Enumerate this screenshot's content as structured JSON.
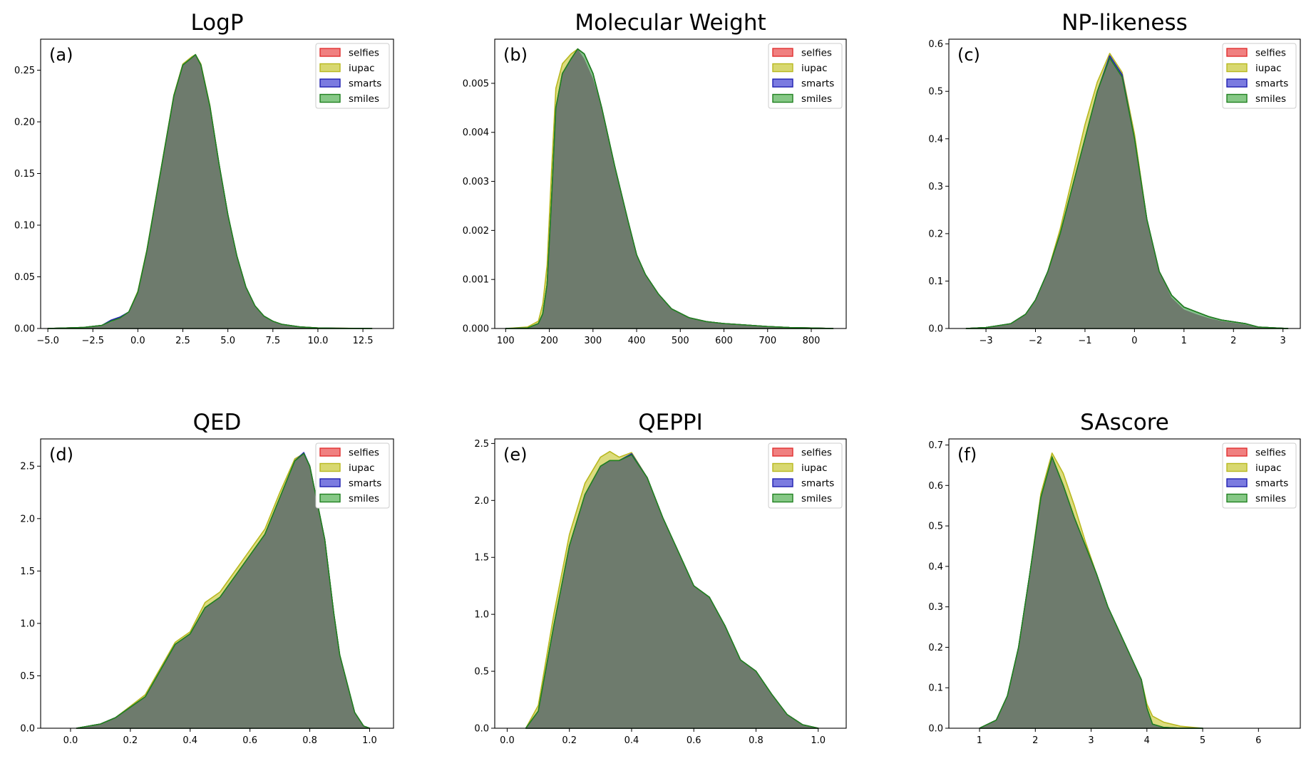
{
  "series_colors": {
    "selfies": {
      "fill": "#f08080",
      "stroke": "#e03030"
    },
    "iupac": {
      "fill": "#d8d870",
      "stroke": "#b8b820"
    },
    "smarts": {
      "fill": "#7b7be0",
      "stroke": "#2020b0"
    },
    "smiles": {
      "fill": "#86c886",
      "stroke": "#208020"
    },
    "overlap_fill": "#6e7b6d"
  },
  "chart_data": [
    {
      "type": "area",
      "title": "LogP",
      "panel_label": "(a)",
      "legend": [
        "selfies",
        "iupac",
        "smarts",
        "smiles"
      ],
      "legend_position": "top-right",
      "xlim": [
        -5.4,
        14.2
      ],
      "ylim": [
        0,
        0.28
      ],
      "xticks": [
        -5.0,
        -2.5,
        0.0,
        2.5,
        5.0,
        7.5,
        10.0,
        12.5
      ],
      "xtick_labels": [
        "−5.0",
        "−2.5",
        "0.0",
        "2.5",
        "5.0",
        "7.5",
        "10.0",
        "12.5"
      ],
      "yticks": [
        0.0,
        0.05,
        0.1,
        0.15,
        0.2,
        0.25
      ],
      "ytick_labels": [
        "0.00",
        "0.05",
        "0.10",
        "0.15",
        "0.20",
        "0.25"
      ],
      "x": [
        -5,
        -3,
        -2,
        -1.5,
        -1,
        -0.5,
        0,
        0.5,
        1,
        1.5,
        2,
        2.5,
        3,
        3.2,
        3.5,
        4,
        4.5,
        5,
        5.5,
        6,
        6.5,
        7,
        7.5,
        8,
        9,
        10,
        11,
        13
      ],
      "series": [
        {
          "name": "selfies",
          "values": [
            0,
            0.001,
            0.003,
            0.007,
            0.01,
            0.016,
            0.035,
            0.075,
            0.125,
            0.175,
            0.225,
            0.255,
            0.262,
            0.265,
            0.255,
            0.215,
            0.16,
            0.11,
            0.07,
            0.04,
            0.022,
            0.012,
            0.007,
            0.004,
            0.0015,
            0.0005,
            0.0002,
            0
          ]
        },
        {
          "name": "iupac",
          "values": [
            0,
            0.001,
            0.003,
            0.006,
            0.01,
            0.016,
            0.036,
            0.076,
            0.126,
            0.176,
            0.226,
            0.256,
            0.263,
            0.265,
            0.256,
            0.216,
            0.16,
            0.11,
            0.07,
            0.04,
            0.022,
            0.012,
            0.007,
            0.004,
            0.0015,
            0.0006,
            0.0003,
            0
          ]
        },
        {
          "name": "smarts",
          "values": [
            0,
            0.001,
            0.003,
            0.008,
            0.011,
            0.016,
            0.035,
            0.075,
            0.125,
            0.175,
            0.225,
            0.255,
            0.262,
            0.265,
            0.255,
            0.215,
            0.16,
            0.11,
            0.07,
            0.04,
            0.022,
            0.012,
            0.007,
            0.004,
            0.0015,
            0.0005,
            0.0002,
            0
          ]
        },
        {
          "name": "smiles",
          "values": [
            0,
            0.001,
            0.003,
            0.007,
            0.01,
            0.016,
            0.035,
            0.075,
            0.125,
            0.175,
            0.225,
            0.255,
            0.262,
            0.265,
            0.255,
            0.215,
            0.16,
            0.11,
            0.07,
            0.04,
            0.022,
            0.012,
            0.007,
            0.004,
            0.0015,
            0.0005,
            0.0002,
            0
          ]
        }
      ]
    },
    {
      "type": "area",
      "title": "Molecular Weight",
      "panel_label": "(b)",
      "legend": [
        "selfies",
        "iupac",
        "smarts",
        "smiles"
      ],
      "legend_position": "top-right",
      "xlim": [
        75,
        880
      ],
      "ylim": [
        0,
        0.0059
      ],
      "xticks": [
        100,
        200,
        300,
        400,
        500,
        600,
        700,
        800
      ],
      "xtick_labels": [
        "100",
        "200",
        "300",
        "400",
        "500",
        "600",
        "700",
        "800"
      ],
      "yticks": [
        0.0,
        0.001,
        0.002,
        0.003,
        0.004,
        0.005
      ],
      "ytick_labels": [
        "0.000",
        "0.001",
        "0.002",
        "0.003",
        "0.004",
        "0.005"
      ],
      "x": [
        100,
        150,
        175,
        185,
        195,
        205,
        215,
        230,
        250,
        265,
        280,
        300,
        320,
        350,
        380,
        400,
        420,
        450,
        480,
        520,
        560,
        600,
        650,
        700,
        750,
        800,
        850
      ],
      "series": [
        {
          "name": "selfies",
          "values": [
            0,
            1e-05,
            0.0001,
            0.0003,
            0.0009,
            0.0026,
            0.0045,
            0.0052,
            0.0055,
            0.0057,
            0.0056,
            0.0052,
            0.0045,
            0.0033,
            0.0022,
            0.0015,
            0.0011,
            0.0007,
            0.0004,
            0.00022,
            0.00014,
            0.0001,
            7e-05,
            4e-05,
            2e-05,
            1e-05,
            0
          ]
        },
        {
          "name": "iupac",
          "values": [
            0,
            3e-05,
            0.00015,
            0.0005,
            0.0013,
            0.0032,
            0.0049,
            0.0054,
            0.0056,
            0.0057,
            0.0055,
            0.0051,
            0.0045,
            0.0033,
            0.0022,
            0.0015,
            0.0011,
            0.0007,
            0.0004,
            0.00022,
            0.00014,
            0.0001,
            7e-05,
            4e-05,
            2e-05,
            1e-05,
            0
          ]
        },
        {
          "name": "smarts",
          "values": [
            0,
            1e-05,
            0.0001,
            0.0003,
            0.0009,
            0.0026,
            0.0045,
            0.0052,
            0.0055,
            0.0057,
            0.0056,
            0.0052,
            0.0045,
            0.0033,
            0.0022,
            0.0015,
            0.0011,
            0.0007,
            0.0004,
            0.00022,
            0.00014,
            0.0001,
            7e-05,
            4e-05,
            2e-05,
            1e-05,
            0
          ]
        },
        {
          "name": "smiles",
          "values": [
            0,
            1e-05,
            0.0001,
            0.0003,
            0.0009,
            0.0026,
            0.0045,
            0.0052,
            0.0055,
            0.0057,
            0.0056,
            0.0052,
            0.0045,
            0.0033,
            0.0022,
            0.0015,
            0.0011,
            0.0007,
            0.0004,
            0.00022,
            0.00014,
            0.0001,
            7e-05,
            4e-05,
            2e-05,
            1e-05,
            0
          ]
        }
      ]
    },
    {
      "type": "area",
      "title": "NP-likeness",
      "panel_label": "(c)",
      "legend": [
        "selfies",
        "iupac",
        "smarts",
        "smiles"
      ],
      "legend_position": "top-right",
      "xlim": [
        -3.75,
        3.35
      ],
      "ylim": [
        0,
        0.61
      ],
      "xticks": [
        -3,
        -2,
        -1,
        0,
        1,
        2,
        3
      ],
      "xtick_labels": [
        "−3",
        "−2",
        "−1",
        "0",
        "1",
        "2",
        "3"
      ],
      "yticks": [
        0.0,
        0.1,
        0.2,
        0.3,
        0.4,
        0.5,
        0.6
      ],
      "ytick_labels": [
        "0.0",
        "0.1",
        "0.2",
        "0.3",
        "0.4",
        "0.5",
        "0.6"
      ],
      "x": [
        -3.4,
        -3,
        -2.5,
        -2.2,
        -2,
        -1.75,
        -1.5,
        -1.25,
        -1,
        -0.75,
        -0.5,
        -0.25,
        0,
        0.25,
        0.5,
        0.75,
        1,
        1.25,
        1.5,
        1.75,
        2,
        2.25,
        2.5,
        3.1
      ],
      "series": [
        {
          "name": "selfies",
          "values": [
            0,
            0.002,
            0.01,
            0.03,
            0.06,
            0.12,
            0.2,
            0.3,
            0.4,
            0.5,
            0.57,
            0.53,
            0.4,
            0.23,
            0.12,
            0.07,
            0.045,
            0.035,
            0.025,
            0.018,
            0.014,
            0.01,
            0.003,
            0
          ]
        },
        {
          "name": "iupac",
          "values": [
            0,
            0.002,
            0.01,
            0.03,
            0.06,
            0.12,
            0.21,
            0.32,
            0.43,
            0.52,
            0.58,
            0.54,
            0.41,
            0.23,
            0.12,
            0.065,
            0.04,
            0.03,
            0.022,
            0.016,
            0.012,
            0.008,
            0.002,
            0
          ]
        },
        {
          "name": "smarts",
          "values": [
            0,
            0.002,
            0.01,
            0.03,
            0.06,
            0.12,
            0.2,
            0.3,
            0.4,
            0.5,
            0.575,
            0.535,
            0.4,
            0.23,
            0.12,
            0.07,
            0.045,
            0.035,
            0.025,
            0.018,
            0.014,
            0.01,
            0.003,
            0
          ]
        },
        {
          "name": "smiles",
          "values": [
            0,
            0.002,
            0.01,
            0.03,
            0.06,
            0.12,
            0.2,
            0.3,
            0.4,
            0.5,
            0.57,
            0.53,
            0.4,
            0.23,
            0.12,
            0.07,
            0.045,
            0.035,
            0.025,
            0.018,
            0.014,
            0.01,
            0.003,
            0
          ]
        }
      ]
    },
    {
      "type": "area",
      "title": "QED",
      "panel_label": "(d)",
      "legend": [
        "selfies",
        "iupac",
        "smarts",
        "smiles"
      ],
      "legend_position": "top-right",
      "xlim": [
        -0.1,
        1.08
      ],
      "ylim": [
        0,
        2.76
      ],
      "xticks": [
        0.0,
        0.2,
        0.4,
        0.6,
        0.8,
        1.0
      ],
      "xtick_labels": [
        "0.0",
        "0.2",
        "0.4",
        "0.6",
        "0.8",
        "1.0"
      ],
      "yticks": [
        0.0,
        0.5,
        1.0,
        1.5,
        2.0,
        2.5
      ],
      "ytick_labels": [
        "0.0",
        "0.5",
        "1.0",
        "1.5",
        "2.0",
        "2.5"
      ],
      "x": [
        0.02,
        0.1,
        0.15,
        0.2,
        0.25,
        0.3,
        0.35,
        0.4,
        0.45,
        0.5,
        0.55,
        0.6,
        0.65,
        0.7,
        0.75,
        0.78,
        0.8,
        0.85,
        0.88,
        0.9,
        0.95,
        0.98,
        1.0
      ],
      "series": [
        {
          "name": "selfies",
          "values": [
            0,
            0.04,
            0.1,
            0.2,
            0.3,
            0.55,
            0.8,
            0.9,
            1.15,
            1.25,
            1.45,
            1.65,
            1.85,
            2.2,
            2.55,
            2.62,
            2.5,
            1.8,
            1.1,
            0.7,
            0.15,
            0.02,
            0
          ]
        },
        {
          "name": "iupac",
          "values": [
            0,
            0.04,
            0.1,
            0.21,
            0.32,
            0.57,
            0.82,
            0.92,
            1.2,
            1.3,
            1.5,
            1.7,
            1.9,
            2.25,
            2.57,
            2.62,
            2.5,
            1.8,
            1.1,
            0.7,
            0.15,
            0.02,
            0
          ]
        },
        {
          "name": "smarts",
          "values": [
            0,
            0.04,
            0.1,
            0.2,
            0.3,
            0.55,
            0.8,
            0.9,
            1.15,
            1.25,
            1.45,
            1.65,
            1.85,
            2.2,
            2.55,
            2.63,
            2.5,
            1.8,
            1.1,
            0.7,
            0.15,
            0.02,
            0
          ]
        },
        {
          "name": "smiles",
          "values": [
            0,
            0.04,
            0.1,
            0.2,
            0.3,
            0.55,
            0.8,
            0.9,
            1.15,
            1.25,
            1.45,
            1.65,
            1.85,
            2.2,
            2.55,
            2.62,
            2.5,
            1.8,
            1.1,
            0.7,
            0.15,
            0.02,
            0
          ]
        }
      ]
    },
    {
      "type": "area",
      "title": "QEPPI",
      "panel_label": "(e)",
      "legend": [
        "selfies",
        "iupac",
        "smarts",
        "smiles"
      ],
      "legend_position": "top-right",
      "xlim": [
        -0.04,
        1.09
      ],
      "ylim": [
        0,
        2.54
      ],
      "xticks": [
        0.0,
        0.2,
        0.4,
        0.6,
        0.8,
        1.0
      ],
      "xtick_labels": [
        "0.0",
        "0.2",
        "0.4",
        "0.6",
        "0.8",
        "1.0"
      ],
      "yticks": [
        0.0,
        0.5,
        1.0,
        1.5,
        2.0,
        2.5
      ],
      "ytick_labels": [
        "0.0",
        "0.5",
        "1.0",
        "1.5",
        "2.0",
        "2.5"
      ],
      "x": [
        0.06,
        0.1,
        0.15,
        0.2,
        0.25,
        0.3,
        0.33,
        0.36,
        0.4,
        0.45,
        0.5,
        0.55,
        0.6,
        0.65,
        0.7,
        0.75,
        0.8,
        0.85,
        0.9,
        0.95,
        1.0
      ],
      "series": [
        {
          "name": "selfies",
          "values": [
            0,
            0.15,
            0.9,
            1.6,
            2.05,
            2.3,
            2.35,
            2.35,
            2.4,
            2.2,
            1.85,
            1.55,
            1.25,
            1.15,
            0.9,
            0.6,
            0.5,
            0.3,
            0.12,
            0.03,
            0
          ]
        },
        {
          "name": "iupac",
          "values": [
            0,
            0.2,
            1.0,
            1.7,
            2.15,
            2.38,
            2.43,
            2.38,
            2.42,
            2.2,
            1.85,
            1.55,
            1.25,
            1.15,
            0.9,
            0.6,
            0.5,
            0.3,
            0.12,
            0.03,
            0
          ]
        },
        {
          "name": "smarts",
          "values": [
            0,
            0.15,
            0.9,
            1.6,
            2.05,
            2.3,
            2.35,
            2.35,
            2.41,
            2.2,
            1.85,
            1.55,
            1.25,
            1.15,
            0.9,
            0.6,
            0.5,
            0.3,
            0.12,
            0.03,
            0
          ]
        },
        {
          "name": "smiles",
          "values": [
            0,
            0.15,
            0.9,
            1.6,
            2.05,
            2.3,
            2.35,
            2.35,
            2.4,
            2.2,
            1.85,
            1.55,
            1.25,
            1.15,
            0.9,
            0.6,
            0.5,
            0.3,
            0.12,
            0.03,
            0
          ]
        }
      ]
    },
    {
      "type": "area",
      "title": "SAscore",
      "panel_label": "(f)",
      "legend": [
        "selfies",
        "iupac",
        "smarts",
        "smiles"
      ],
      "legend_position": "top-right",
      "xlim": [
        0.45,
        6.75
      ],
      "ylim": [
        0,
        0.715
      ],
      "xticks": [
        1,
        2,
        3,
        4,
        5,
        6
      ],
      "xtick_labels": [
        "1",
        "2",
        "3",
        "4",
        "5",
        "6"
      ],
      "yticks": [
        0.0,
        0.1,
        0.2,
        0.3,
        0.4,
        0.5,
        0.6,
        0.7
      ],
      "ytick_labels": [
        "0.0",
        "0.1",
        "0.2",
        "0.3",
        "0.4",
        "0.5",
        "0.6",
        "0.7"
      ],
      "x": [
        1.0,
        1.3,
        1.5,
        1.7,
        1.9,
        2.1,
        2.3,
        2.5,
        2.7,
        2.9,
        3.1,
        3.3,
        3.5,
        3.7,
        3.9,
        4.0,
        4.1,
        4.3,
        4.6,
        5.0
      ],
      "series": [
        {
          "name": "selfies",
          "values": [
            0,
            0.02,
            0.08,
            0.2,
            0.38,
            0.57,
            0.67,
            0.6,
            0.52,
            0.45,
            0.38,
            0.3,
            0.24,
            0.18,
            0.12,
            0.05,
            0.01,
            0.002,
            0,
            0
          ]
        },
        {
          "name": "iupac",
          "values": [
            0,
            0.02,
            0.08,
            0.2,
            0.38,
            0.58,
            0.68,
            0.63,
            0.55,
            0.46,
            0.38,
            0.3,
            0.24,
            0.18,
            0.12,
            0.06,
            0.03,
            0.015,
            0.005,
            0
          ]
        },
        {
          "name": "smarts",
          "values": [
            0,
            0.02,
            0.08,
            0.2,
            0.38,
            0.57,
            0.67,
            0.6,
            0.52,
            0.45,
            0.38,
            0.3,
            0.24,
            0.18,
            0.12,
            0.05,
            0.01,
            0.002,
            0,
            0
          ]
        },
        {
          "name": "smiles",
          "values": [
            0,
            0.02,
            0.08,
            0.2,
            0.38,
            0.57,
            0.67,
            0.6,
            0.52,
            0.45,
            0.38,
            0.3,
            0.24,
            0.18,
            0.12,
            0.05,
            0.01,
            0.002,
            0,
            0
          ]
        }
      ]
    }
  ]
}
